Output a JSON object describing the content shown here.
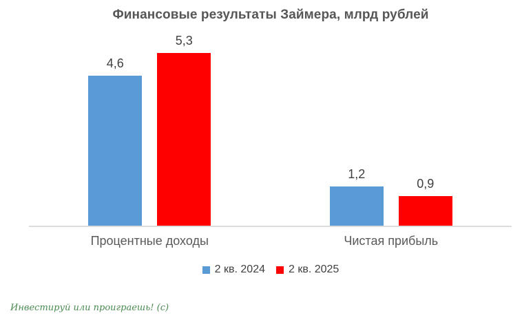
{
  "title": "Финансовые результаты Займера, млрд рублей",
  "watermark": "Инвестируй или проиграешь! (с)",
  "colors": {
    "series_2kv2024": "#5B9BD5",
    "series_2kv2025": "#FF0000",
    "axis_line": "#DCDCDC",
    "title_text": "#565656",
    "value_label_text": "#3F3F3F",
    "category_text": "#595959",
    "legend_text": "#404040",
    "watermark_green": "#4A8A50",
    "background": "#FFFFFF"
  },
  "chart_data": {
    "type": "bar",
    "title": "Финансовые результаты Займера, млрд рублей",
    "categories": [
      "Процентные доходы",
      "Чистая прибыль"
    ],
    "series": [
      {
        "name": "2 кв. 2024",
        "color": "#5B9BD5",
        "values": [
          4.6,
          1.2
        ],
        "labels": [
          "4,6",
          "1,2"
        ]
      },
      {
        "name": "2 кв. 2025",
        "color": "#FF0000",
        "values": [
          5.3,
          0.9
        ],
        "labels": [
          "5,3",
          "0,9"
        ]
      }
    ],
    "xlabel": "",
    "ylabel": "",
    "ylim": [
      0,
      5.5
    ],
    "grid": false,
    "value_axis_visible": false,
    "data_labels": true,
    "legend_position": "bottom"
  }
}
